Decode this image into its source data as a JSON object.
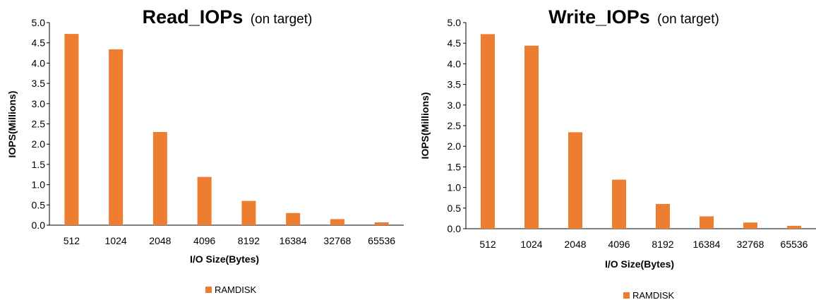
{
  "chart_data": [
    {
      "type": "bar",
      "title": "Read_IOPs",
      "subtitle": "(on target)",
      "xlabel": "I/O Size(Bytes)",
      "ylabel": "IOPS(Millions)",
      "ylim": [
        0,
        5.0
      ],
      "yticks": [
        "0.0",
        "0.5",
        "1.0",
        "1.5",
        "2.0",
        "2.5",
        "3.0",
        "3.5",
        "4.0",
        "4.5",
        "5.0"
      ],
      "categories": [
        "512",
        "1024",
        "2048",
        "4096",
        "8192",
        "16384",
        "32768",
        "65536"
      ],
      "series": [
        {
          "name": "RAMDISK",
          "color": "#ED7D31",
          "values": [
            4.72,
            4.34,
            2.3,
            1.19,
            0.6,
            0.3,
            0.15,
            0.07
          ]
        }
      ],
      "legend_position": "bottom",
      "grid": false
    },
    {
      "type": "bar",
      "title": "Write_IOPs",
      "subtitle": "(on target)",
      "xlabel": "I/O Size(Bytes)",
      "ylabel": "IOPS(Millions)",
      "ylim": [
        0,
        5.0
      ],
      "yticks": [
        "0.0",
        "0.5",
        "1.0",
        "1.5",
        "2.0",
        "2.5",
        "3.0",
        "3.5",
        "4.0",
        "4.5",
        "5.0"
      ],
      "categories": [
        "512",
        "1024",
        "2048",
        "4096",
        "8192",
        "16384",
        "32768",
        "65536"
      ],
      "series": [
        {
          "name": "RAMDISK",
          "color": "#ED7D31",
          "values": [
            4.72,
            4.44,
            2.34,
            1.19,
            0.6,
            0.3,
            0.15,
            0.07
          ]
        }
      ],
      "legend_position": "bottom",
      "grid": false
    }
  ]
}
